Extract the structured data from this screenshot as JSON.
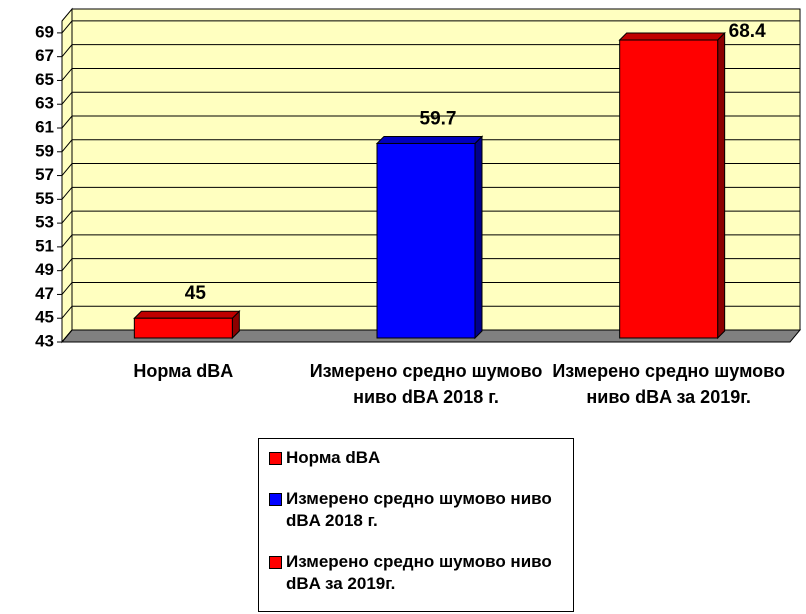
{
  "chart_data": {
    "type": "bar3d",
    "categories": [
      "Норма dBA",
      "Измерено средно шумово ниво dBA 2018 г.",
      "Измерено средно шумово ниво dBA за 2019г."
    ],
    "values": [
      45,
      59.7,
      68.4
    ],
    "colors": [
      "#ff0000",
      "#0000ff",
      "#ff0000"
    ],
    "ylim": [
      43,
      70
    ],
    "yticks": [
      43,
      45,
      47,
      49,
      51,
      53,
      55,
      57,
      59,
      61,
      63,
      65,
      67,
      69
    ],
    "grid": true,
    "legend": "bottom"
  }
}
